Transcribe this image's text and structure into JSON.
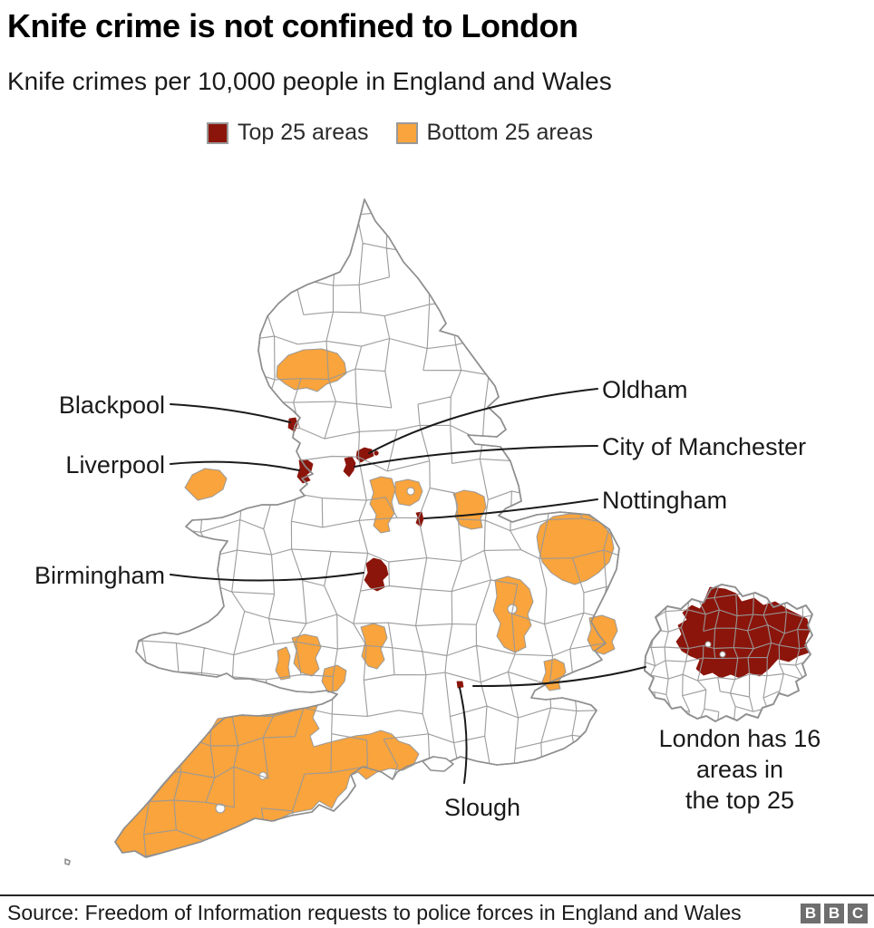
{
  "title": "Knife crime is not confined to London",
  "subtitle": "Knife crimes per 10,000 people in England and Wales",
  "legend": {
    "top25_label": "Top 25 areas",
    "bottom25_label": "Bottom 25 areas"
  },
  "colors": {
    "top25": "#8b150b",
    "bottom25": "#f9a43c",
    "boundary": "#999999",
    "coast": "#8f8f8f",
    "leader": "#1a1a1a",
    "labeltext": "#1a1a1a",
    "logobg": "#6e6e6e"
  },
  "map_labels": {
    "blackpool": "Blackpool",
    "liverpool": "Liverpool",
    "birmingham": "Birmingham",
    "oldham": "Oldham",
    "manchester": "City of Manchester",
    "nottingham": "Nottingham",
    "slough": "Slough"
  },
  "inset": {
    "caption_line1": "London has 16",
    "caption_line2": "areas in",
    "caption_line3": "the top 25"
  },
  "footer": {
    "source": "Source: Freedom of Information requests to police forces in England and Wales",
    "logo_letters": [
      "B",
      "B",
      "C"
    ]
  }
}
